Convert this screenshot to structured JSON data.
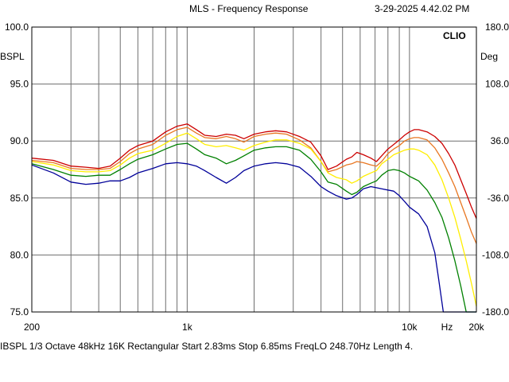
{
  "header": {
    "title": "MLS - Frequency Response",
    "timestamp": "3-29-2025 4.42.02 PM",
    "brand": "CLIO"
  },
  "footer": {
    "text": "IBSPL   1/3 Octave   48kHz   16K   Rectangular   Start 2.83ms    Stop 6.85ms    FreqLO 248.70Hz   Length 4."
  },
  "chart_data": {
    "type": "line",
    "title": "MLS - Frequency Response",
    "x_scale": "log",
    "xlim": [
      200,
      20000
    ],
    "ylim": [
      75,
      100
    ],
    "y2lim": [
      -180,
      180
    ],
    "ylabel": "BSPL",
    "y2label": "Deg",
    "xlabel": "Hz",
    "grid": true,
    "x_ticks": [
      {
        "value": 200,
        "label": "200"
      },
      {
        "value": 1000,
        "label": "1k"
      },
      {
        "value": 10000,
        "label": "10k"
      },
      {
        "value": 20000,
        "label": "20k"
      }
    ],
    "y_ticks": [
      {
        "value": 100,
        "label": "100.0"
      },
      {
        "value": 95,
        "label": "95.0"
      },
      {
        "value": 90,
        "label": "90.0"
      },
      {
        "value": 85,
        "label": "85.0"
      },
      {
        "value": 80,
        "label": "80.0"
      },
      {
        "value": 75,
        "label": "75.0"
      }
    ],
    "y2_ticks": [
      {
        "value": 180,
        "label": "180.0"
      },
      {
        "value": 108,
        "label": "108.0"
      },
      {
        "value": 36,
        "label": "36.0"
      },
      {
        "value": -36,
        "label": "-36.0"
      },
      {
        "value": -108,
        "label": "-108.0"
      },
      {
        "value": -180,
        "label": "-180.0"
      }
    ],
    "series": [
      {
        "color": "#cc0000",
        "points": [
          [
            200,
            88.5
          ],
          [
            250,
            88.3
          ],
          [
            300,
            87.8
          ],
          [
            350,
            87.7
          ],
          [
            400,
            87.6
          ],
          [
            450,
            87.8
          ],
          [
            500,
            88.5
          ],
          [
            550,
            89.2
          ],
          [
            600,
            89.6
          ],
          [
            700,
            90.0
          ],
          [
            800,
            90.8
          ],
          [
            900,
            91.3
          ],
          [
            1000,
            91.5
          ],
          [
            1100,
            91.0
          ],
          [
            1200,
            90.5
          ],
          [
            1350,
            90.4
          ],
          [
            1500,
            90.6
          ],
          [
            1650,
            90.5
          ],
          [
            1800,
            90.2
          ],
          [
            2000,
            90.6
          ],
          [
            2250,
            90.8
          ],
          [
            2500,
            90.9
          ],
          [
            2800,
            90.8
          ],
          [
            3200,
            90.4
          ],
          [
            3600,
            89.9
          ],
          [
            4000,
            88.7
          ],
          [
            4300,
            87.5
          ],
          [
            4700,
            87.8
          ],
          [
            5200,
            88.4
          ],
          [
            5500,
            88.6
          ],
          [
            5800,
            89.0
          ],
          [
            6200,
            88.8
          ],
          [
            6700,
            88.5
          ],
          [
            7100,
            88.2
          ],
          [
            7500,
            88.7
          ],
          [
            8000,
            89.3
          ],
          [
            8500,
            89.7
          ],
          [
            9000,
            90.1
          ],
          [
            9500,
            90.5
          ],
          [
            10000,
            90.8
          ],
          [
            10500,
            91.0
          ],
          [
            11000,
            91.0
          ],
          [
            12000,
            90.8
          ],
          [
            13000,
            90.4
          ],
          [
            14000,
            89.8
          ],
          [
            15000,
            88.9
          ],
          [
            16000,
            87.9
          ],
          [
            17000,
            86.6
          ],
          [
            18000,
            85.4
          ],
          [
            19000,
            84.2
          ],
          [
            20000,
            83.2
          ]
        ]
      },
      {
        "color": "#e87722",
        "points": [
          [
            200,
            88.3
          ],
          [
            250,
            88.1
          ],
          [
            300,
            87.6
          ],
          [
            350,
            87.5
          ],
          [
            400,
            87.5
          ],
          [
            450,
            87.6
          ],
          [
            500,
            88.2
          ],
          [
            550,
            88.9
          ],
          [
            600,
            89.3
          ],
          [
            700,
            89.7
          ],
          [
            800,
            90.5
          ],
          [
            900,
            91.0
          ],
          [
            1000,
            91.2
          ],
          [
            1100,
            90.7
          ],
          [
            1200,
            90.3
          ],
          [
            1350,
            90.2
          ],
          [
            1500,
            90.4
          ],
          [
            1650,
            90.2
          ],
          [
            1800,
            89.9
          ],
          [
            2000,
            90.4
          ],
          [
            2250,
            90.6
          ],
          [
            2500,
            90.7
          ],
          [
            2800,
            90.6
          ],
          [
            3200,
            90.1
          ],
          [
            3600,
            89.4
          ],
          [
            4000,
            88.2
          ],
          [
            4300,
            87.3
          ],
          [
            4700,
            87.5
          ],
          [
            5200,
            87.9
          ],
          [
            5500,
            88.0
          ],
          [
            5800,
            88.2
          ],
          [
            6200,
            88.1
          ],
          [
            6700,
            87.9
          ],
          [
            7100,
            87.8
          ],
          [
            7500,
            88.2
          ],
          [
            8000,
            88.9
          ],
          [
            8500,
            89.3
          ],
          [
            9000,
            89.6
          ],
          [
            9500,
            90.0
          ],
          [
            10000,
            90.2
          ],
          [
            10500,
            90.3
          ],
          [
            11000,
            90.3
          ],
          [
            12000,
            90.1
          ],
          [
            13000,
            89.4
          ],
          [
            14000,
            88.4
          ],
          [
            15000,
            87.2
          ],
          [
            16000,
            86.0
          ],
          [
            17000,
            84.6
          ],
          [
            18000,
            83.3
          ],
          [
            19000,
            82.0
          ],
          [
            20000,
            81.0
          ]
        ]
      },
      {
        "color": "#ffee00",
        "points": [
          [
            200,
            88.2
          ],
          [
            250,
            87.9
          ],
          [
            300,
            87.4
          ],
          [
            350,
            87.3
          ],
          [
            400,
            87.3
          ],
          [
            450,
            87.4
          ],
          [
            500,
            87.9
          ],
          [
            550,
            88.5
          ],
          [
            600,
            88.9
          ],
          [
            700,
            89.2
          ],
          [
            800,
            89.8
          ],
          [
            900,
            90.4
          ],
          [
            1000,
            90.7
          ],
          [
            1100,
            90.2
          ],
          [
            1200,
            89.7
          ],
          [
            1350,
            89.5
          ],
          [
            1500,
            89.6
          ],
          [
            1650,
            89.4
          ],
          [
            1800,
            89.2
          ],
          [
            2000,
            89.6
          ],
          [
            2250,
            89.9
          ],
          [
            2500,
            90.1
          ],
          [
            2800,
            90.1
          ],
          [
            3200,
            89.8
          ],
          [
            3600,
            89.3
          ],
          [
            4000,
            88.2
          ],
          [
            4300,
            87.2
          ],
          [
            4700,
            86.8
          ],
          [
            5200,
            86.6
          ],
          [
            5500,
            86.3
          ],
          [
            5800,
            86.5
          ],
          [
            6200,
            86.9
          ],
          [
            6700,
            87.2
          ],
          [
            7100,
            87.4
          ],
          [
            7500,
            88.0
          ],
          [
            8000,
            88.4
          ],
          [
            8500,
            88.8
          ],
          [
            9000,
            89.0
          ],
          [
            9500,
            89.2
          ],
          [
            10000,
            89.3
          ],
          [
            10500,
            89.3
          ],
          [
            11000,
            89.2
          ],
          [
            12000,
            88.8
          ],
          [
            13000,
            87.9
          ],
          [
            14000,
            86.6
          ],
          [
            15000,
            85.0
          ],
          [
            16000,
            83.3
          ],
          [
            17000,
            81.4
          ],
          [
            18000,
            79.5
          ],
          [
            19000,
            77.5
          ],
          [
            20000,
            75.5
          ]
        ]
      },
      {
        "color": "#008000",
        "points": [
          [
            200,
            88.0
          ],
          [
            250,
            87.5
          ],
          [
            300,
            87.0
          ],
          [
            350,
            86.9
          ],
          [
            400,
            87.0
          ],
          [
            450,
            87.0
          ],
          [
            500,
            87.5
          ],
          [
            550,
            88.0
          ],
          [
            600,
            88.4
          ],
          [
            700,
            88.8
          ],
          [
            800,
            89.3
          ],
          [
            900,
            89.7
          ],
          [
            1000,
            89.8
          ],
          [
            1100,
            89.3
          ],
          [
            1200,
            88.8
          ],
          [
            1350,
            88.5
          ],
          [
            1500,
            88.0
          ],
          [
            1650,
            88.3
          ],
          [
            1800,
            88.7
          ],
          [
            2000,
            89.2
          ],
          [
            2250,
            89.4
          ],
          [
            2500,
            89.5
          ],
          [
            2800,
            89.5
          ],
          [
            3200,
            89.2
          ],
          [
            3600,
            88.4
          ],
          [
            4000,
            87.3
          ],
          [
            4300,
            86.4
          ],
          [
            4700,
            86.2
          ],
          [
            5200,
            85.6
          ],
          [
            5500,
            85.3
          ],
          [
            5800,
            85.5
          ],
          [
            6200,
            86.0
          ],
          [
            6700,
            86.3
          ],
          [
            7100,
            86.5
          ],
          [
            7500,
            87.0
          ],
          [
            8000,
            87.4
          ],
          [
            8500,
            87.5
          ],
          [
            9000,
            87.4
          ],
          [
            9500,
            87.2
          ],
          [
            10000,
            86.9
          ],
          [
            10500,
            86.7
          ],
          [
            11000,
            86.5
          ],
          [
            12000,
            85.7
          ],
          [
            13000,
            84.6
          ],
          [
            14000,
            83.3
          ],
          [
            15000,
            81.5
          ],
          [
            16000,
            79.5
          ],
          [
            17000,
            77.3
          ],
          [
            18000,
            75.0
          ],
          [
            20000,
            75.0
          ]
        ]
      },
      {
        "color": "#000099",
        "points": [
          [
            200,
            87.9
          ],
          [
            250,
            87.2
          ],
          [
            300,
            86.4
          ],
          [
            350,
            86.2
          ],
          [
            400,
            86.3
          ],
          [
            450,
            86.5
          ],
          [
            500,
            86.5
          ],
          [
            550,
            86.8
          ],
          [
            600,
            87.2
          ],
          [
            700,
            87.6
          ],
          [
            800,
            88.0
          ],
          [
            900,
            88.1
          ],
          [
            1000,
            88.0
          ],
          [
            1100,
            87.8
          ],
          [
            1200,
            87.4
          ],
          [
            1350,
            86.8
          ],
          [
            1500,
            86.3
          ],
          [
            1650,
            86.8
          ],
          [
            1800,
            87.4
          ],
          [
            2000,
            87.8
          ],
          [
            2250,
            88.0
          ],
          [
            2500,
            88.1
          ],
          [
            2800,
            88.0
          ],
          [
            3200,
            87.7
          ],
          [
            3600,
            86.9
          ],
          [
            4000,
            86.0
          ],
          [
            4300,
            85.6
          ],
          [
            4700,
            85.2
          ],
          [
            5200,
            84.9
          ],
          [
            5500,
            85.0
          ],
          [
            5800,
            85.3
          ],
          [
            6200,
            85.8
          ],
          [
            6700,
            86.0
          ],
          [
            7100,
            85.9
          ],
          [
            7500,
            85.8
          ],
          [
            8000,
            85.7
          ],
          [
            8500,
            85.6
          ],
          [
            9000,
            85.2
          ],
          [
            9500,
            84.7
          ],
          [
            10000,
            84.2
          ],
          [
            11000,
            83.6
          ],
          [
            12000,
            82.5
          ],
          [
            13000,
            80.2
          ],
          [
            13500,
            78.0
          ],
          [
            14200,
            75.0
          ],
          [
            20000,
            75.0
          ]
        ]
      }
    ]
  }
}
